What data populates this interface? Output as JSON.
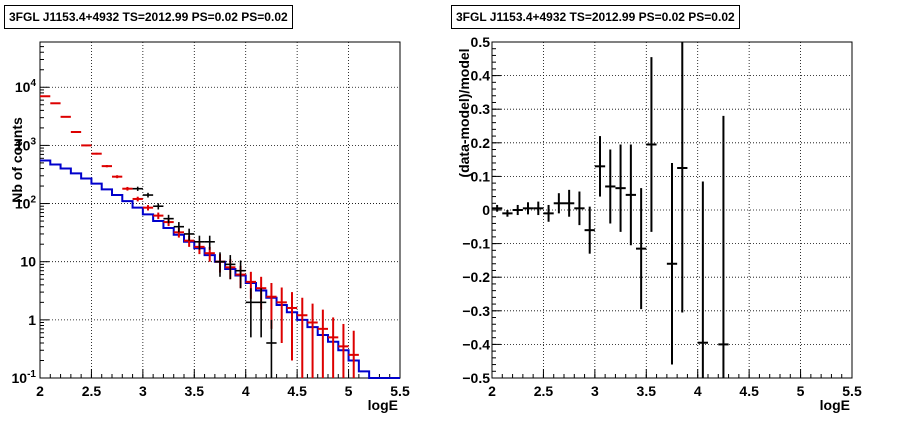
{
  "chart_data": [
    {
      "type": "line",
      "title": "3FGL J1153.4+4932 TS=2012.99 PS=0.02 PS=0.02",
      "xlabel": "logE",
      "ylabel": "Nb of counts",
      "xlim": [
        2,
        5.5
      ],
      "ylim": [
        0.1,
        60000
      ],
      "ylog": true,
      "grid": true,
      "x_ticks": [
        "2",
        "2.5",
        "3",
        "3.5",
        "4",
        "4.5",
        "5",
        "5.5"
      ],
      "y_ticks": [
        "10⁻¹",
        "1",
        "10",
        "10²",
        "10³",
        "10⁴"
      ],
      "series": [
        {
          "role": "model",
          "color": "#0000cc",
          "style": "step",
          "bin_edges": [
            2.0,
            2.1,
            2.2,
            2.3,
            2.4,
            2.5,
            2.6,
            2.7,
            2.8,
            2.9,
            3.0,
            3.1,
            3.2,
            3.3,
            3.4,
            3.5,
            3.6,
            3.7,
            3.8,
            3.9,
            4.0,
            4.1,
            4.2,
            4.3,
            4.4,
            4.5,
            4.6,
            4.7,
            4.8,
            4.9,
            5.0,
            5.1,
            5.2,
            5.3,
            5.4,
            5.5
          ],
          "values": [
            550,
            470,
            400,
            330,
            270,
            220,
            175,
            140,
            110,
            85,
            65,
            50,
            38,
            29,
            22,
            17,
            13,
            10,
            7.5,
            5.8,
            4.3,
            3.2,
            2.4,
            1.8,
            1.35,
            1.0,
            0.75,
            0.55,
            0.42,
            0.3,
            0.2,
            0.13,
            0.1,
            0.1,
            0.1
          ]
        },
        {
          "role": "total",
          "color": "#dd0000",
          "style": "errorbar",
          "x": [
            2.05,
            2.15,
            2.25,
            2.35,
            2.45,
            2.55,
            2.65,
            2.75,
            2.85,
            2.95,
            3.05,
            3.15,
            3.25,
            3.35,
            3.45,
            3.55,
            3.65,
            3.75,
            3.85,
            3.95,
            4.05,
            4.15,
            4.25,
            4.35,
            4.45,
            4.55,
            4.65,
            4.75,
            4.85,
            4.95,
            5.05
          ],
          "y": [
            7000,
            5300,
            3100,
            1700,
            1000,
            720,
            440,
            290,
            180,
            120,
            85,
            62,
            48,
            32,
            23,
            18,
            14,
            10,
            8,
            6,
            4.5,
            3.5,
            2.5,
            2,
            1.6,
            1.2,
            0.9,
            0.7,
            0.5,
            0.35,
            0.25
          ],
          "err_low": [
            80,
            70,
            55,
            40,
            30,
            25,
            20,
            17,
            13,
            11,
            9,
            8,
            7,
            6,
            5,
            4.5,
            4,
            3.5,
            3,
            2.5,
            2.2,
            2,
            1.8,
            1.6,
            1.4,
            1.2,
            0.9,
            0.7,
            0.5,
            0.35,
            0.25
          ],
          "err_high": [
            80,
            70,
            55,
            40,
            30,
            25,
            20,
            17,
            13,
            11,
            9,
            8,
            7,
            6,
            5,
            4.5,
            4,
            3.5,
            3,
            2.5,
            2.2,
            2,
            1.8,
            1.6,
            1.4,
            1.2,
            1.0,
            0.8,
            0.6,
            0.5,
            0.4
          ]
        },
        {
          "role": "source",
          "color": "#000000",
          "style": "errorbar",
          "x": [
            2.95,
            3.05,
            3.15,
            3.25,
            3.35,
            3.45,
            3.55,
            3.65,
            3.75,
            3.85,
            3.95,
            4.05,
            4.15,
            4.25
          ],
          "y": [
            180,
            140,
            90,
            55,
            40,
            30,
            22,
            22,
            10,
            9,
            7,
            2,
            2,
            0.4
          ],
          "err_low": [
            15,
            13,
            11,
            9,
            8,
            7,
            6,
            6,
            4.5,
            4,
            3.5,
            1.5,
            1.5,
            0.39
          ],
          "err_high": [
            15,
            13,
            11,
            9,
            8,
            7,
            6,
            6,
            4.5,
            4,
            3.5,
            1.5,
            1.5,
            0.6
          ]
        }
      ]
    },
    {
      "type": "scatter",
      "title": "3FGL J1153.4+4932 TS=2012.99 PS=0.02 PS=0.02",
      "xlabel": "logE",
      "ylabel": "(data-model)/model",
      "xlim": [
        2,
        5.5
      ],
      "ylim": [
        -0.5,
        0.5
      ],
      "grid": true,
      "x_ticks": [
        "2",
        "2.5",
        "3",
        "3.5",
        "4",
        "4.5",
        "5",
        "5.5"
      ],
      "y_ticks": [
        "−0.5",
        "−0.4",
        "−0.3",
        "−0.2",
        "−0.1",
        "0",
        "0.1",
        "0.2",
        "0.3",
        "0.4",
        "0.5"
      ],
      "series": [
        {
          "color": "#000000",
          "style": "errorbar",
          "x": [
            2.05,
            2.15,
            2.25,
            2.35,
            2.45,
            2.55,
            2.65,
            2.75,
            2.85,
            2.95,
            3.05,
            3.15,
            3.25,
            3.35,
            3.45,
            3.55,
            3.75,
            3.85,
            4.05,
            4.25
          ],
          "y": [
            0.005,
            -0.01,
            0.0,
            0.005,
            0.005,
            -0.01,
            0.02,
            0.02,
            0.005,
            -0.06,
            0.13,
            0.07,
            0.065,
            0.045,
            -0.115,
            0.195,
            -0.16,
            0.125,
            -0.395,
            -0.4
          ],
          "err": [
            0.01,
            0.01,
            0.015,
            0.018,
            0.02,
            0.025,
            0.03,
            0.04,
            0.05,
            0.07,
            0.09,
            0.11,
            0.13,
            0.15,
            0.18,
            0.26,
            0.3,
            0.43,
            0.48,
            0.68
          ]
        }
      ]
    }
  ]
}
